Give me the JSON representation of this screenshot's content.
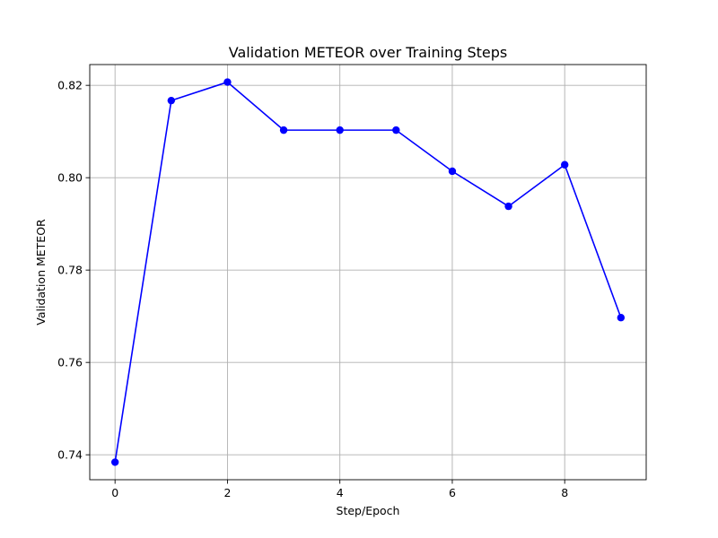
{
  "chart_data": {
    "type": "line",
    "title": "Validation METEOR over Training Steps",
    "xlabel": "Step/Epoch",
    "ylabel": "Validation METEOR",
    "x": [
      0,
      1,
      2,
      3,
      4,
      5,
      6,
      7,
      8,
      9
    ],
    "series": [
      {
        "values": [
          0.7384,
          0.8167,
          0.8207,
          0.8103,
          0.8103,
          0.8103,
          0.8014,
          0.7938,
          0.8028,
          0.7697
        ],
        "color": "#0000ff",
        "marker": "circle"
      }
    ],
    "xlim": [
      -0.45,
      9.45
    ],
    "ylim": [
      0.7346,
      0.8245
    ],
    "xticks": [
      0,
      2,
      4,
      6,
      8
    ],
    "yticks": [
      0.74,
      0.76,
      0.78,
      0.8,
      0.82
    ],
    "ytick_labels": [
      "0.74",
      "0.76",
      "0.78",
      "0.80",
      "0.82"
    ],
    "grid": true,
    "legend": "none"
  }
}
